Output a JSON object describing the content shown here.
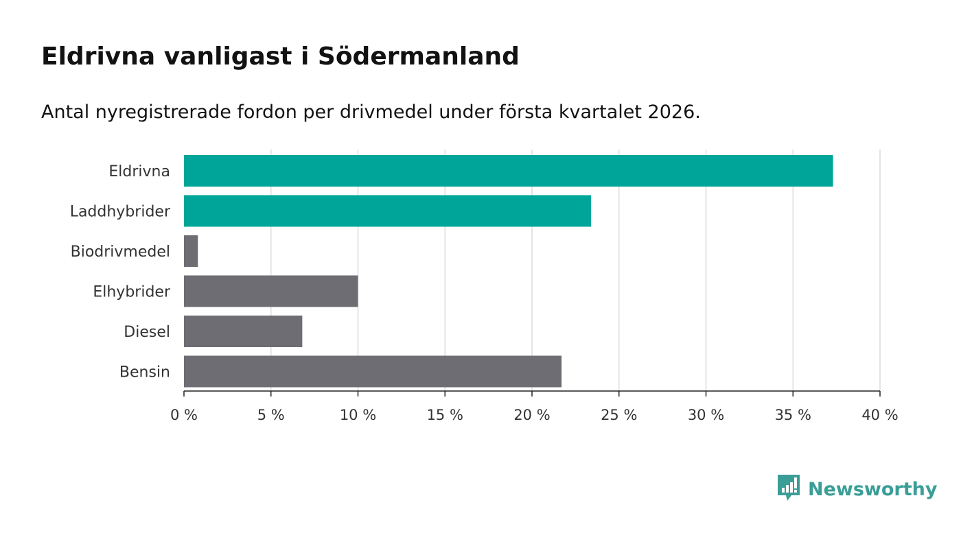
{
  "chart_data": {
    "type": "bar",
    "orientation": "horizontal",
    "title": "Eldrivna vanligast i Södermanland",
    "subtitle": "Antal nyregistrerade fordon per drivmedel under första kvartalet 2026.",
    "categories": [
      "Eldrivna",
      "Laddhybrider",
      "Biodrivmedel",
      "Elhybrider",
      "Diesel",
      "Bensin"
    ],
    "values": [
      37.3,
      23.4,
      0.8,
      10.0,
      6.8,
      21.7
    ],
    "colors": [
      "#00a59a",
      "#00a59a",
      "#6e6d73",
      "#6e6d73",
      "#6e6d73",
      "#6e6d73"
    ],
    "xlim": [
      0,
      40
    ],
    "xticks": [
      0,
      5,
      10,
      15,
      20,
      25,
      30,
      35,
      40
    ],
    "xtick_labels": [
      "0 %",
      "5 %",
      "10 %",
      "15 %",
      "20 %",
      "25 %",
      "30 %",
      "35 %",
      "40 %"
    ],
    "xlabel": "",
    "ylabel": "",
    "grid": true
  },
  "brand": {
    "name": "Newsworthy",
    "color": "#3a9e96"
  }
}
